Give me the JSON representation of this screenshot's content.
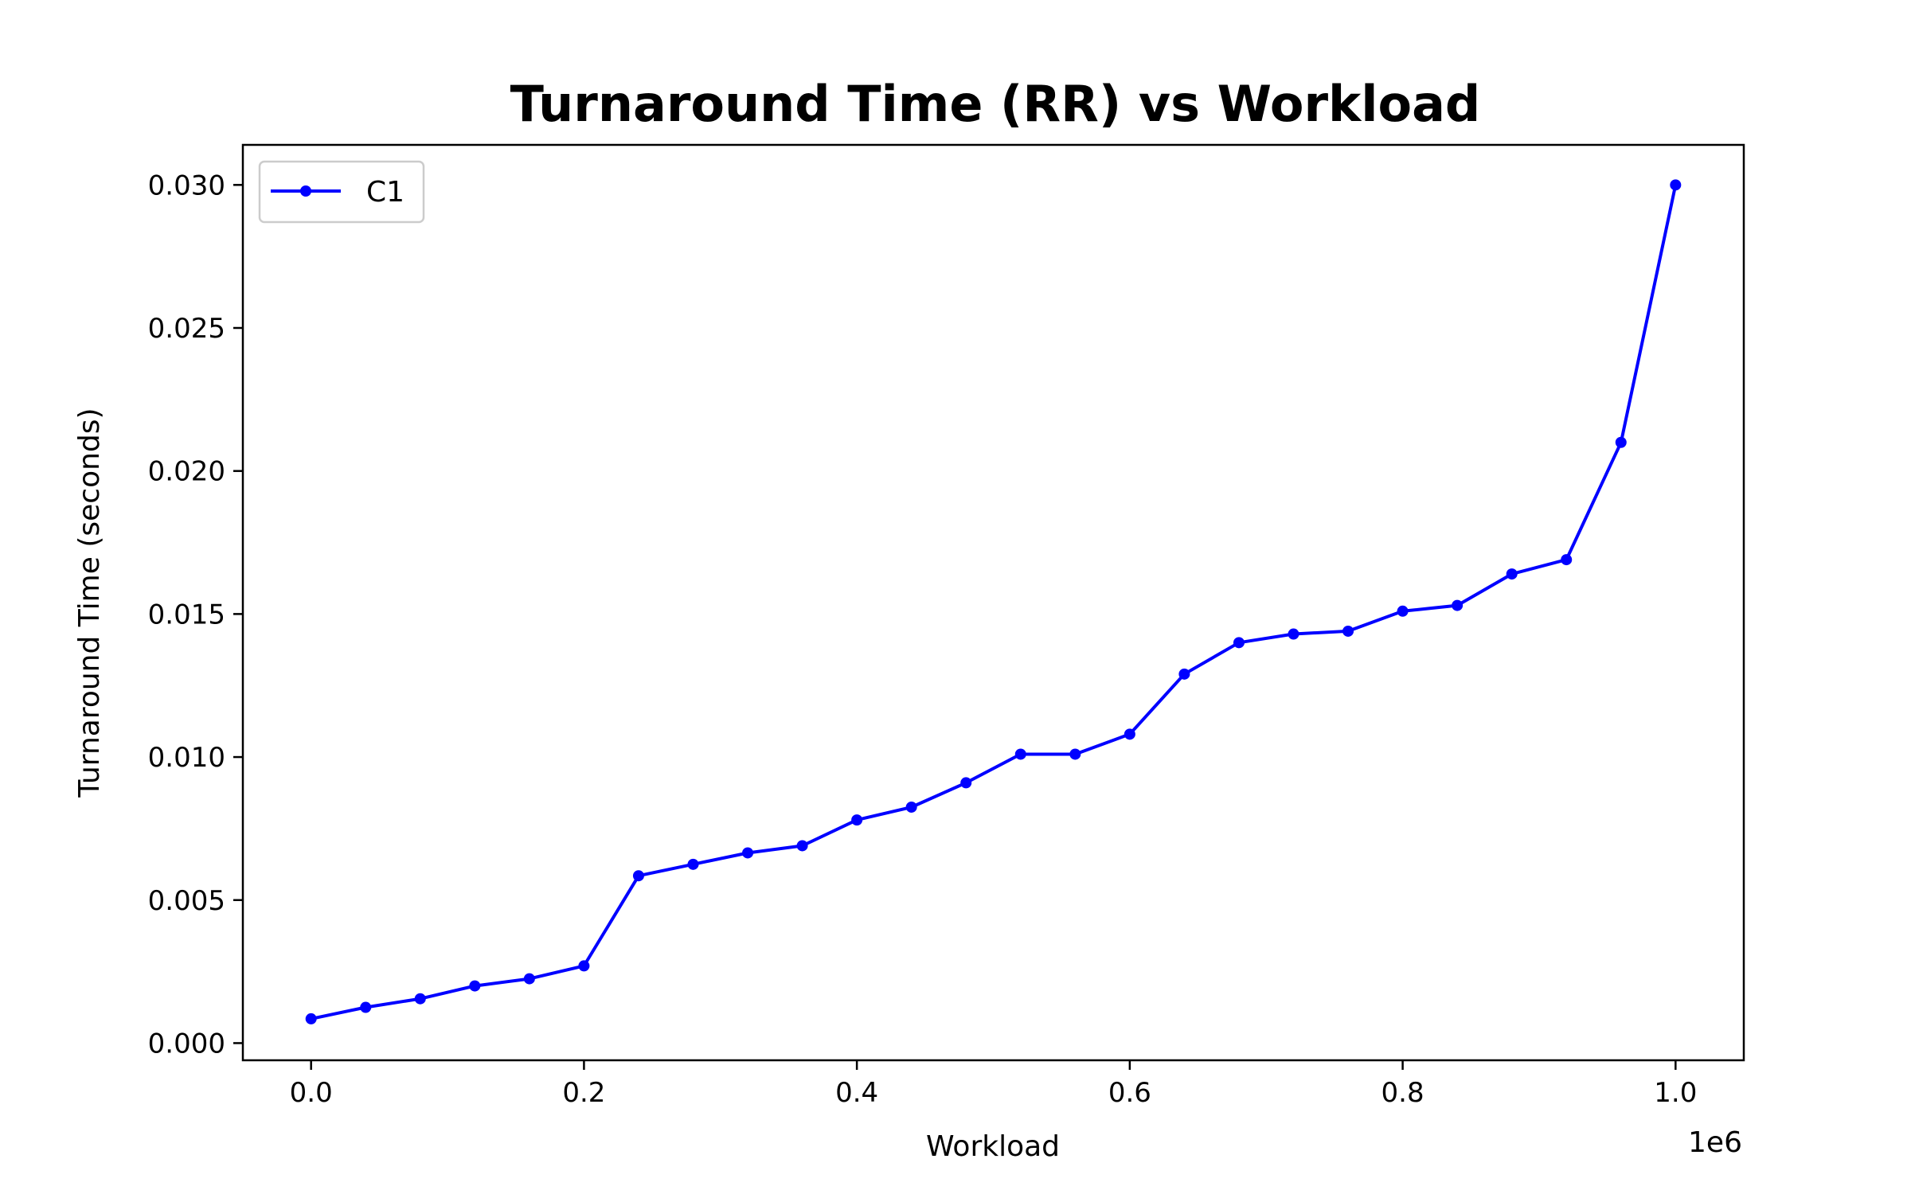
{
  "chart_data": {
    "type": "line",
    "title": "Turnaround Time (RR) vs Workload",
    "xlabel": "Workload",
    "ylabel": "Turnaround Time (seconds)",
    "x_offset_label": "1e6",
    "xlim": [
      -0.05,
      1.05
    ],
    "ylim": [
      -0.0006,
      0.0314
    ],
    "xticks": [
      0.0,
      0.2,
      0.4,
      0.6,
      0.8,
      1.0
    ],
    "xtick_labels": [
      "0.0",
      "0.2",
      "0.4",
      "0.6",
      "0.8",
      "1.0"
    ],
    "yticks": [
      0.0,
      0.005,
      0.01,
      0.015,
      0.02,
      0.025,
      0.03
    ],
    "ytick_labels": [
      "0.000",
      "0.005",
      "0.010",
      "0.015",
      "0.020",
      "0.025",
      "0.030"
    ],
    "grid": false,
    "legend_position": "top-left",
    "series": [
      {
        "name": "C1",
        "color": "#0000ff",
        "marker": "circle",
        "x": [
          0.0,
          0.04,
          0.08,
          0.12,
          0.16,
          0.2,
          0.24,
          0.28,
          0.32,
          0.36,
          0.4,
          0.44,
          0.48,
          0.52,
          0.56,
          0.6,
          0.64,
          0.68,
          0.72,
          0.76,
          0.8,
          0.84,
          0.88,
          0.92,
          0.96,
          1.0
        ],
        "y": [
          0.00085,
          0.00125,
          0.00155,
          0.002,
          0.00225,
          0.0027,
          0.00585,
          0.00625,
          0.00665,
          0.0069,
          0.0078,
          0.00825,
          0.0091,
          0.0101,
          0.0101,
          0.0108,
          0.0129,
          0.014,
          0.0143,
          0.0144,
          0.0151,
          0.0153,
          0.0164,
          0.0169,
          0.021,
          0.03
        ]
      }
    ]
  }
}
